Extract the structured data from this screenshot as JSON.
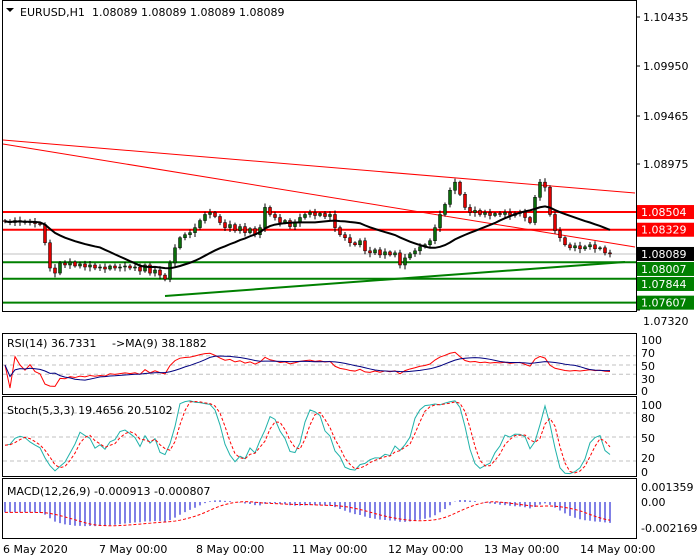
{
  "header": {
    "symbol": "EURUSD,H1",
    "ohlc": "1.08089 1.08089 1.08089 1.08089",
    "menu_icon": "triangle-down-icon"
  },
  "colors": {
    "bull": "#0a6e0a",
    "bear": "#e00000",
    "resistance": "#ff0000",
    "support": "#008000",
    "ma": "#000000",
    "bid": "#c0c0c0",
    "rsi": "#ff0000",
    "rsi_ma": "#000080",
    "stoch_main": "#20b2aa",
    "stoch_signal": "#ff0000",
    "macd_hist": "#0000cc",
    "macd_signal": "#ff0000"
  },
  "chart_data": [
    {
      "type": "candlestick",
      "title": "EURUSD,H1",
      "price_axis_ticks": [
        "1.10435",
        "1.09950",
        "1.09465",
        "1.08975",
        "1.07320"
      ],
      "ylim": [
        1.0732,
        1.106
      ],
      "time_labels": [
        "6 May 2020",
        "7 May 00:00",
        "8 May 00:00",
        "11 May 00:00",
        "12 May 00:00",
        "13 May 00:00",
        "14 May 00:00"
      ],
      "closes": [
        1.0841,
        1.084,
        1.0842,
        1.0841,
        1.084,
        1.0841,
        1.0839,
        1.0838,
        1.082,
        1.0795,
        1.079,
        1.08,
        1.0798,
        1.0801,
        1.0797,
        1.0799,
        1.0796,
        1.0798,
        1.0795,
        1.0796,
        1.0794,
        1.0797,
        1.0795,
        1.0796,
        1.0797,
        1.0795,
        1.0796,
        1.0792,
        1.0798,
        1.079,
        1.0793,
        1.0788,
        1.0784,
        1.08,
        1.0815,
        1.0825,
        1.0828,
        1.083,
        1.0835,
        1.0842,
        1.0848,
        1.085,
        1.0846,
        1.084,
        1.0835,
        1.0838,
        1.0832,
        1.0836,
        1.083,
        1.0834,
        1.0828,
        1.0835,
        1.0855,
        1.0848,
        1.0845,
        1.084,
        1.0842,
        1.0836,
        1.084,
        1.0845,
        1.0848,
        1.085,
        1.0847,
        1.0849,
        1.0846,
        1.0848,
        1.0835,
        1.0828,
        1.0825,
        1.082,
        1.0818,
        1.0822,
        1.0812,
        1.081,
        1.0813,
        1.0808,
        1.0811,
        1.0808,
        1.081,
        1.0798,
        1.0805,
        1.0809,
        1.0812,
        1.0816,
        1.0818,
        1.0822,
        1.0835,
        1.0848,
        1.0858,
        1.0872,
        1.088,
        1.0868,
        1.0855,
        1.085,
        1.0852,
        1.0848,
        1.085,
        1.0847,
        1.0849,
        1.0848,
        1.085,
        1.0847,
        1.0849,
        1.085,
        1.0845,
        1.084,
        1.0865,
        1.088,
        1.0875,
        1.0848,
        1.0832,
        1.0825,
        1.0818,
        1.0815,
        1.0817,
        1.0814,
        1.0816,
        1.0818,
        1.0814,
        1.0815,
        1.081,
        1.0809
      ],
      "horizontal_levels": [
        {
          "price": 1.08504,
          "label": "1.08504",
          "kind": "resistance"
        },
        {
          "price": 1.08329,
          "label": "1.08329",
          "kind": "resistance"
        },
        {
          "price": 1.08007,
          "label": "1.08007",
          "kind": "support"
        },
        {
          "price": 1.07844,
          "label": "1.07844",
          "kind": "support"
        },
        {
          "price": 1.07607,
          "label": "1.07607",
          "kind": "support"
        }
      ],
      "bid": {
        "price": 1.08089,
        "label": "1.08089"
      },
      "trendlines": [
        {
          "kind": "resistance",
          "from_bar": -1,
          "from_price": 1.09217,
          "to_bar": 126,
          "to_price": 1.08693
        },
        {
          "kind": "resistance",
          "from_bar": -1,
          "from_price": 1.09178,
          "to_bar": 126,
          "to_price": 1.08158
        },
        {
          "kind": "support",
          "from_bar": 32,
          "from_price": 1.07673,
          "to_bar": 124,
          "to_price": 1.0801
        }
      ]
    },
    {
      "type": "line",
      "title": "RSI(14) 36.7331",
      "title2": "->MA(9) 38.1882",
      "ylim": [
        0,
        100
      ],
      "ticks": [
        "100",
        "70",
        "50",
        "30",
        "0"
      ],
      "levels": [
        70,
        50,
        30
      ]
    },
    {
      "type": "line",
      "title": "Stoch(5,3,3) 19.4656 20.5102",
      "ylim": [
        0,
        100
      ],
      "ticks": [
        "100",
        "80",
        "50",
        "20",
        "0"
      ],
      "levels": [
        80,
        50,
        20
      ]
    },
    {
      "type": "bar",
      "title": "MACD(12,26,9) -0.000913 -0.000807",
      "ylim": [
        -0.002169,
        0.001359
      ],
      "ticks": [
        "0.001359",
        "0.00",
        "-0.002169"
      ]
    }
  ]
}
